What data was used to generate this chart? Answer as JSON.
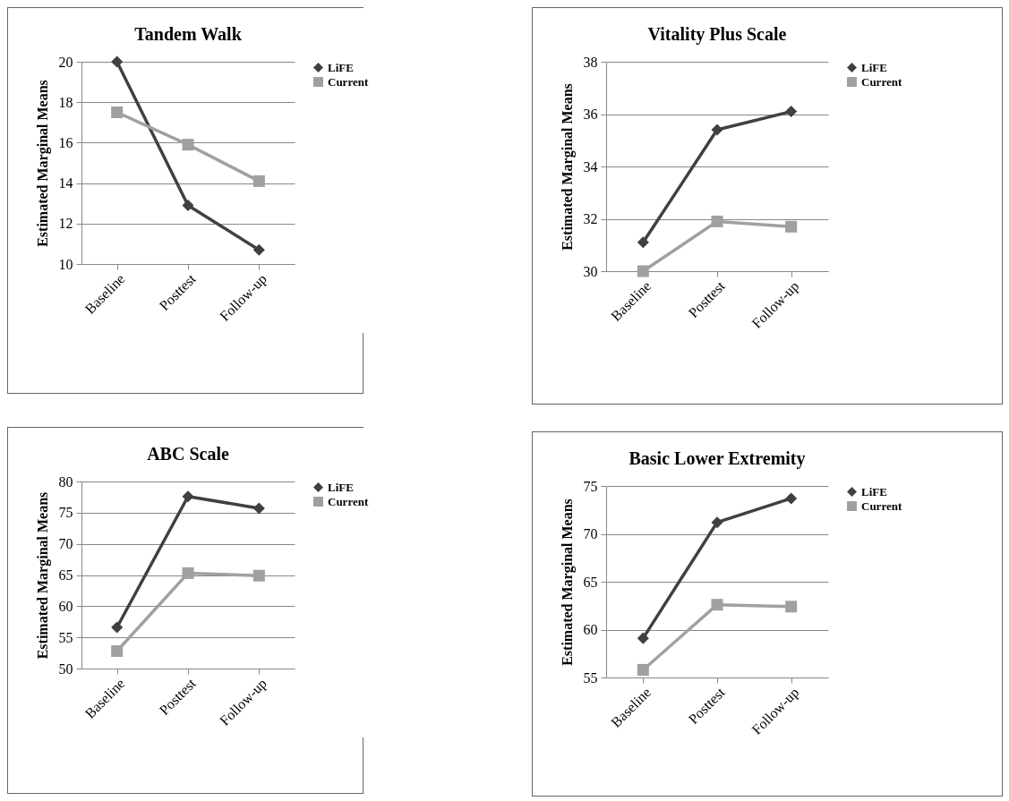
{
  "chart_data": [
    {
      "type": "line",
      "title": "Tandem Walk",
      "ylabel": "Estimated Marginal Means",
      "categories": [
        "Baseline",
        "Posttest",
        "Follow-up"
      ],
      "ylim": [
        10,
        20
      ],
      "yticks": [
        10,
        12,
        14,
        16,
        18,
        20
      ],
      "grid": "y",
      "legend": "right",
      "line_style": "solid",
      "series": [
        {
          "name": "LiFE",
          "color": "#404040",
          "marker": "diamond",
          "values": [
            20.0,
            12.9,
            10.7
          ]
        },
        {
          "name": "Current",
          "color": "#a0a0a0",
          "marker": "square",
          "values": [
            17.5,
            15.9,
            14.1
          ]
        }
      ]
    },
    {
      "type": "line",
      "title": "Vitality Plus Scale",
      "ylabel": "Estimated Marginal Means",
      "categories": [
        "Baseline",
        "Posttest",
        "Follow-up"
      ],
      "ylim": [
        30,
        38
      ],
      "yticks": [
        30,
        32,
        34,
        36,
        38
      ],
      "grid": "y",
      "legend": "right",
      "line_style": "solid",
      "series": [
        {
          "name": "LiFE",
          "color": "#404040",
          "marker": "diamond",
          "values": [
            31.1,
            35.4,
            36.1
          ]
        },
        {
          "name": "Current",
          "color": "#a0a0a0",
          "marker": "square",
          "values": [
            30.0,
            31.9,
            31.7
          ]
        }
      ]
    },
    {
      "type": "line",
      "title": "ABC Scale",
      "ylabel": "Estimated Marginal Means",
      "categories": [
        "Baseline",
        "Posttest",
        "Follow-up"
      ],
      "ylim": [
        50,
        80
      ],
      "yticks": [
        50,
        55,
        60,
        65,
        70,
        75,
        80
      ],
      "grid": "y",
      "legend": "right",
      "line_style": "solid",
      "series": [
        {
          "name": "LiFE",
          "color": "#404040",
          "marker": "diamond",
          "values": [
            56.6,
            77.6,
            75.7
          ]
        },
        {
          "name": "Current",
          "color": "#a0a0a0",
          "marker": "square",
          "values": [
            52.8,
            65.3,
            64.9
          ]
        }
      ]
    },
    {
      "type": "line",
      "title": "Basic Lower Extremity",
      "ylabel": "Estimated Marginal Means",
      "categories": [
        "Baseline",
        "Posttest",
        "Follow-up"
      ],
      "ylim": [
        55,
        75
      ],
      "yticks": [
        55,
        60,
        65,
        70,
        75
      ],
      "grid": "y",
      "legend": "right",
      "line_style": "solid",
      "series": [
        {
          "name": "LiFE",
          "color": "#404040",
          "marker": "diamond",
          "values": [
            59.1,
            71.2,
            73.7
          ]
        },
        {
          "name": "Current",
          "color": "#a0a0a0",
          "marker": "square",
          "values": [
            55.8,
            62.6,
            62.4
          ]
        }
      ]
    }
  ]
}
